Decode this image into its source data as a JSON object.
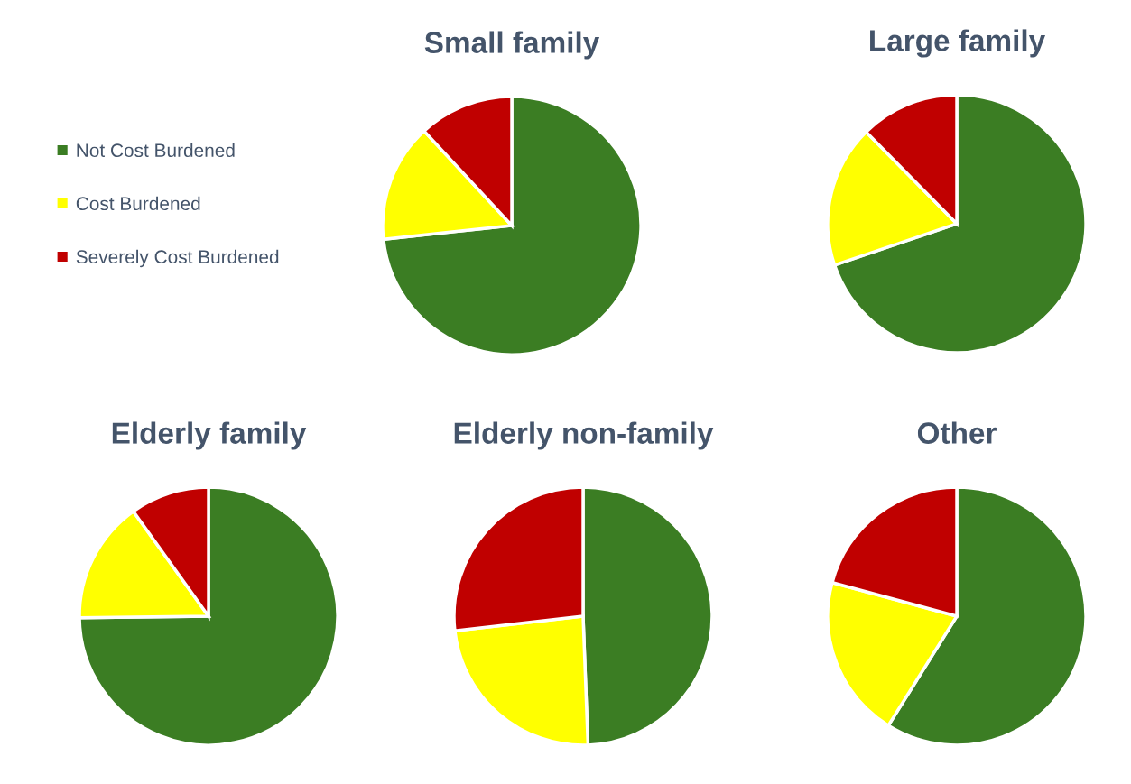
{
  "chart_data": [
    {
      "type": "pie",
      "title": "Small family",
      "categories": [
        "Not Cost Burdened",
        "Cost Burdened",
        "Severely Cost Burdened"
      ],
      "values": [
        73.3,
        14.8,
        11.9
      ],
      "colors": [
        "#3b7d23",
        "#ffff00",
        "#c00000"
      ],
      "legend": "left"
    },
    {
      "type": "pie",
      "title": "Large family",
      "categories": [
        null,
        null,
        null
      ],
      "values": [
        69.8,
        17.8,
        12.4
      ],
      "colors": [
        "#3b7d23",
        "#ffff00",
        "#c00000"
      ]
    },
    {
      "type": "pie",
      "title": "Elderly family",
      "categories": [
        null,
        null,
        null
      ],
      "values": [
        74.8,
        15.3,
        9.9
      ],
      "colors": [
        "#3b7d23",
        "#ffff00",
        "#c00000"
      ]
    },
    {
      "type": "pie",
      "title": "Elderly non-family",
      "categories": [
        null,
        null,
        null
      ],
      "values": [
        49.4,
        23.8,
        26.8
      ],
      "colors": [
        "#3b7d23",
        "#ffff00",
        "#c00000"
      ]
    },
    {
      "type": "pie",
      "title": "Other",
      "categories": [
        null,
        null,
        null
      ],
      "values": [
        58.9,
        20.3,
        20.8
      ],
      "colors": [
        "#3b7d23",
        "#ffff00",
        "#c00000"
      ]
    }
  ]
}
